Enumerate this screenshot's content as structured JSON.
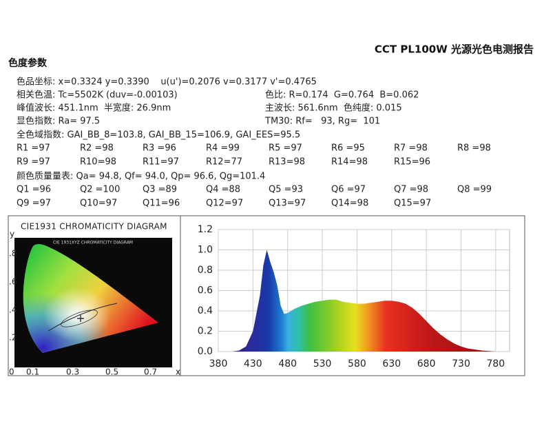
{
  "header": {
    "title": "CCT PL100W 光源光色电测报告"
  },
  "section_title": "色度参数",
  "params": [
    {
      "text": "色品坐标: x=0.3324 y=0.3390    u(u')=0.2076 v=0.3177 v'=0.4765"
    },
    {
      "text": "相关色温: Tc=5502K (duv=-0.00103)",
      "right": "色比: R=0.174  G=0.764  B=0.062"
    },
    {
      "text": "峰值波长: 451.1nm  半宽度: 26.9nm",
      "right": "主波长: 561.6nm  色纯度: 0.015"
    },
    {
      "text": "显色指数: Ra= 97.5",
      "right": "TM30: Rf=   93, Rg=  101"
    },
    {
      "text": "全色域指数: GAI_BB_8=103.8, GAI_BB_15=106.9, GAI_EES=95.5"
    }
  ],
  "r_values": [
    [
      "R1 =97",
      "R2 =98",
      "R3 =96",
      "R4 =99",
      "R5 =97",
      "R6 =95",
      "R7 =98",
      "R8 =98"
    ],
    [
      "R9 =97",
      "R10=98",
      "R11=97",
      "R12=77",
      "R13=98",
      "R14=98",
      "R15=96"
    ]
  ],
  "quality": "颜色质量量表: Qa= 94.8, Qf= 94.0, Qp= 96.6, Qg=101.4",
  "q_values": [
    [
      "Q1 =96",
      "Q2 =100",
      "Q3 =89",
      "Q4 =88",
      "Q5 =93",
      "Q6 =97",
      "Q7 =98",
      "Q8 =99"
    ],
    [
      "Q9 =97",
      "Q10=97",
      "Q11=96",
      "Q12=97",
      "Q13=97",
      "Q14=98",
      "Q15=97"
    ]
  ],
  "cie": {
    "title": "CIE1931 CHROMATICITY DIAGRAM",
    "inner_title": "CIE 1931XYZ CHROMATICITY DIAGRAM",
    "y_label": "y",
    "y_ticks": [
      ".8",
      ".6",
      ".4",
      ".2",
      "0"
    ],
    "x_ticks": [
      "0.1",
      "0.3",
      "0.5",
      "0.7"
    ],
    "x_label": "x"
  },
  "chart_data": {
    "type": "area",
    "x": [
      380,
      390,
      400,
      410,
      420,
      430,
      440,
      445,
      450,
      455,
      460,
      465,
      470,
      475,
      480,
      490,
      500,
      510,
      520,
      530,
      540,
      550,
      560,
      570,
      580,
      590,
      600,
      610,
      620,
      630,
      640,
      650,
      660,
      670,
      680,
      690,
      700,
      710,
      720,
      730,
      740,
      750,
      760,
      770,
      780
    ],
    "values": [
      0,
      0,
      0,
      0.01,
      0.05,
      0.2,
      0.55,
      0.85,
      1.0,
      0.88,
      0.78,
      0.65,
      0.45,
      0.37,
      0.38,
      0.42,
      0.45,
      0.47,
      0.49,
      0.5,
      0.51,
      0.51,
      0.49,
      0.48,
      0.47,
      0.47,
      0.48,
      0.49,
      0.5,
      0.5,
      0.49,
      0.47,
      0.43,
      0.37,
      0.3,
      0.23,
      0.17,
      0.12,
      0.08,
      0.05,
      0.03,
      0.02,
      0.01,
      0.005,
      0
    ],
    "xlim": [
      380,
      800
    ],
    "ylim": [
      0,
      1.2
    ],
    "xticks": [
      380,
      430,
      480,
      530,
      580,
      630,
      680,
      730,
      780
    ],
    "yticks": [
      {
        "value": 0,
        "label": "0.0"
      },
      0.2,
      0.4,
      0.6,
      0.8,
      {
        "value": 1,
        "label": "1.0"
      },
      1.2
    ],
    "grid": true
  }
}
